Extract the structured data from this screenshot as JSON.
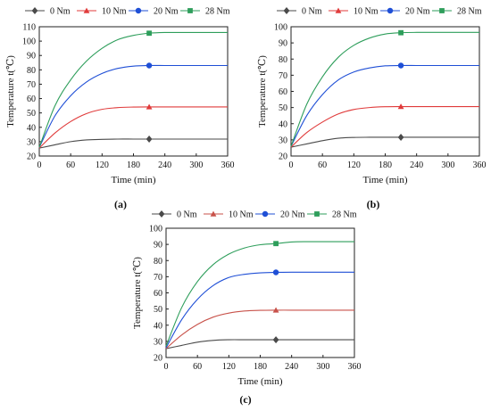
{
  "chart_data": [
    {
      "type": "line",
      "panel_label": "(a)",
      "xlabel": "Time (min)",
      "ylabel": "Temperature t(℃)",
      "xlim": [
        0,
        360
      ],
      "ylim": [
        20,
        110
      ],
      "xticks": [
        0,
        60,
        120,
        180,
        240,
        300,
        360
      ],
      "yticks": [
        20,
        30,
        40,
        50,
        60,
        70,
        80,
        90,
        100,
        110
      ],
      "grid": false,
      "legend_position": "top",
      "series": [
        {
          "name": "0 Nm",
          "color": "#4a4a4a",
          "marker": "diamond",
          "marker_x": 210,
          "x": [
            0,
            30,
            60,
            90,
            120,
            150,
            180,
            210,
            240,
            270,
            300,
            330,
            360
          ],
          "y": [
            25.5,
            27.8,
            30,
            31.2,
            31.6,
            31.8,
            31.8,
            31.8,
            31.8,
            31.8,
            31.8,
            31.8,
            31.8
          ]
        },
        {
          "name": "10 Nm",
          "color": "#e03b3b",
          "marker": "triangle",
          "marker_x": 210,
          "x": [
            0,
            30,
            60,
            90,
            120,
            150,
            180,
            210,
            240,
            270,
            300,
            330,
            360
          ],
          "y": [
            25.5,
            36,
            44,
            49.5,
            52.5,
            53.7,
            54.1,
            54.2,
            54.2,
            54.2,
            54.2,
            54.2,
            54.2
          ]
        },
        {
          "name": "20 Nm",
          "color": "#1f4fd6",
          "marker": "circle",
          "marker_x": 210,
          "x": [
            0,
            30,
            60,
            90,
            120,
            150,
            180,
            210,
            240,
            270,
            300,
            330,
            360
          ],
          "y": [
            26,
            48,
            62,
            71.5,
            77.5,
            81,
            82.6,
            83,
            83,
            83,
            83,
            83,
            83
          ]
        },
        {
          "name": "28 Nm",
          "color": "#2e9e5b",
          "marker": "square",
          "marker_x": 210,
          "x": [
            0,
            30,
            60,
            90,
            120,
            150,
            180,
            210,
            240,
            270,
            300,
            330,
            360
          ],
          "y": [
            26,
            55,
            73,
            86,
            95,
            101,
            104,
            105.5,
            106,
            106,
            106,
            106,
            106
          ]
        }
      ]
    },
    {
      "type": "line",
      "panel_label": "(b)",
      "xlabel": "Time (min)",
      "ylabel": "Temperature t(℃)",
      "xlim": [
        0,
        360
      ],
      "ylim": [
        20,
        100
      ],
      "xticks": [
        0,
        60,
        120,
        180,
        240,
        300,
        360
      ],
      "yticks": [
        20,
        30,
        40,
        50,
        60,
        70,
        80,
        90,
        100
      ],
      "grid": false,
      "legend_position": "top",
      "series": [
        {
          "name": "0 Nm",
          "color": "#4a4a4a",
          "marker": "diamond",
          "marker_x": 210,
          "x": [
            0,
            30,
            60,
            90,
            120,
            150,
            180,
            210,
            240,
            270,
            300,
            330,
            360
          ],
          "y": [
            25.5,
            27.5,
            29.5,
            31,
            31.5,
            31.6,
            31.6,
            31.6,
            31.6,
            31.6,
            31.6,
            31.6,
            31.6
          ]
        },
        {
          "name": "10 Nm",
          "color": "#e03b3b",
          "marker": "triangle",
          "marker_x": 210,
          "x": [
            0,
            30,
            60,
            90,
            120,
            150,
            180,
            210,
            240,
            270,
            300,
            330,
            360
          ],
          "y": [
            25.5,
            34.5,
            41,
            46,
            48.8,
            50,
            50.5,
            50.6,
            50.6,
            50.6,
            50.6,
            50.6,
            50.6
          ]
        },
        {
          "name": "20 Nm",
          "color": "#1f4fd6",
          "marker": "circle",
          "marker_x": 210,
          "x": [
            0,
            30,
            60,
            90,
            120,
            150,
            180,
            210,
            240,
            270,
            300,
            330,
            360
          ],
          "y": [
            26,
            45,
            58,
            67,
            72,
            74.5,
            75.8,
            76,
            76,
            76,
            76,
            76,
            76
          ]
        },
        {
          "name": "28 Nm",
          "color": "#2e9e5b",
          "marker": "square",
          "marker_x": 210,
          "x": [
            0,
            30,
            60,
            90,
            120,
            150,
            180,
            210,
            240,
            270,
            300,
            330,
            360
          ],
          "y": [
            26,
            52,
            69,
            81,
            88.5,
            93,
            95.5,
            96.3,
            96.5,
            96.5,
            96.5,
            96.5,
            96.5
          ]
        }
      ]
    },
    {
      "type": "line",
      "panel_label": "(c)",
      "xlabel": "Time (min)",
      "ylabel": "Temperature t(℃)",
      "xlim": [
        0,
        360
      ],
      "ylim": [
        20,
        100
      ],
      "xticks": [
        0,
        60,
        120,
        180,
        240,
        300,
        360
      ],
      "yticks": [
        20,
        30,
        40,
        50,
        60,
        70,
        80,
        90,
        100
      ],
      "grid": false,
      "legend_position": "top",
      "series": [
        {
          "name": "0 Nm",
          "color": "#4a4a4a",
          "marker": "diamond",
          "marker_x": 210,
          "x": [
            0,
            30,
            60,
            90,
            120,
            150,
            180,
            210,
            240,
            270,
            300,
            330,
            360
          ],
          "y": [
            25.5,
            27.5,
            29.5,
            30.6,
            31,
            31,
            31,
            31,
            31,
            31,
            31,
            31,
            31
          ]
        },
        {
          "name": "10 Nm",
          "color": "#c8524a",
          "marker": "triangle",
          "marker_x": 210,
          "x": [
            0,
            30,
            60,
            90,
            120,
            150,
            180,
            210,
            240,
            270,
            300,
            330,
            360
          ],
          "y": [
            25.5,
            34,
            40.5,
            45,
            47.5,
            48.8,
            49.2,
            49.3,
            49.3,
            49.3,
            49.3,
            49.3,
            49.3
          ]
        },
        {
          "name": "20 Nm",
          "color": "#1f4fd6",
          "marker": "circle",
          "marker_x": 210,
          "x": [
            0,
            30,
            60,
            90,
            120,
            150,
            180,
            210,
            240,
            270,
            300,
            330,
            360
          ],
          "y": [
            26,
            43.5,
            56,
            64.5,
            69.5,
            71.5,
            72.4,
            72.7,
            72.8,
            72.8,
            72.8,
            72.8,
            72.8
          ]
        },
        {
          "name": "28 Nm",
          "color": "#2e9e5b",
          "marker": "square",
          "marker_x": 210,
          "x": [
            0,
            30,
            60,
            90,
            120,
            150,
            180,
            210,
            240,
            270,
            300,
            330,
            360
          ],
          "y": [
            27,
            51,
            67,
            77.5,
            84,
            87.8,
            89.8,
            90.5,
            91.5,
            91.7,
            91.7,
            91.7,
            91.7
          ]
        }
      ]
    }
  ]
}
